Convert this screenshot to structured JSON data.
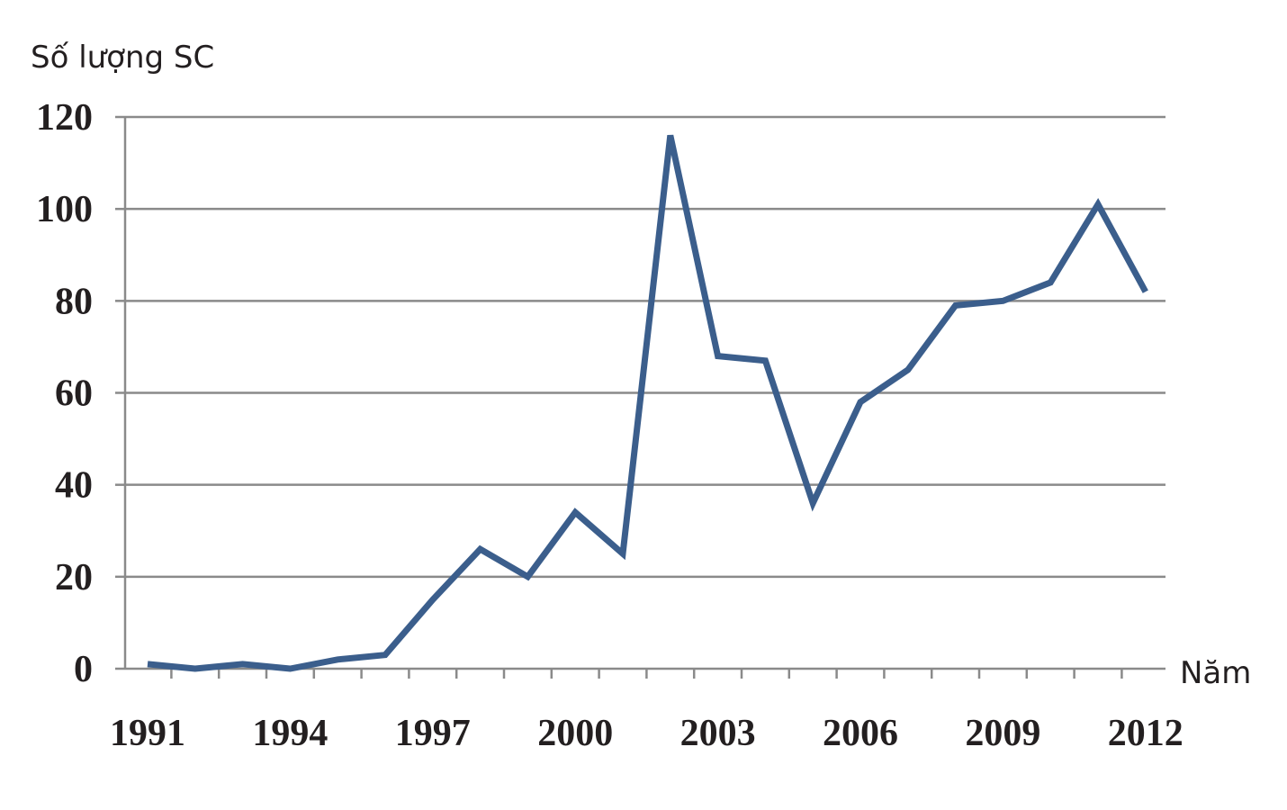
{
  "chart_data": {
    "type": "line",
    "ylabel": "Số lượng SC",
    "xlabel": "Năm",
    "ylim": [
      0,
      120
    ],
    "yticks": [
      0,
      20,
      40,
      60,
      80,
      100,
      120
    ],
    "xlim": [
      1991,
      2012
    ],
    "xticks": [
      "1991",
      "1994",
      "1997",
      "2000",
      "2003",
      "2006",
      "2009",
      "2012"
    ],
    "grid": true,
    "legend": "none",
    "line_color": "#3b5e8c",
    "series": [
      {
        "x": [
          1991,
          1992,
          1993,
          1994,
          1995,
          1996,
          1997,
          1998,
          1999,
          2000,
          2001,
          2002,
          2003,
          2004,
          2005,
          2006,
          2007,
          2008,
          2009,
          2010,
          2011,
          2012
        ],
        "values": [
          1,
          0,
          1,
          0,
          2,
          3,
          15,
          26,
          20,
          34,
          25,
          116,
          68,
          67,
          36,
          58,
          65,
          79,
          80,
          84,
          101,
          82
        ]
      }
    ]
  }
}
